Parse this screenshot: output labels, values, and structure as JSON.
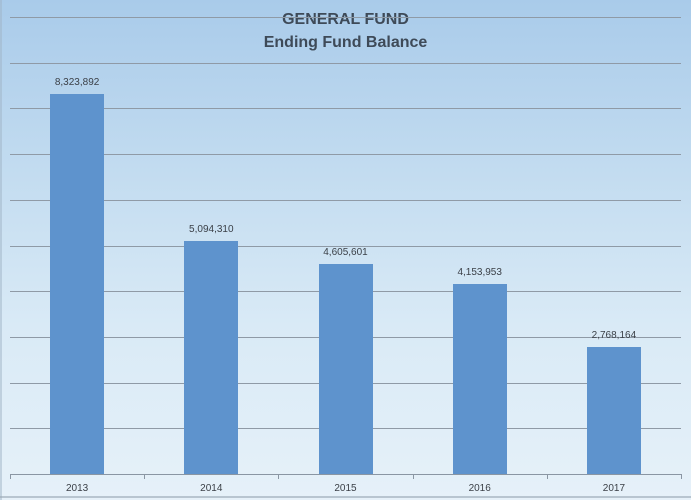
{
  "chart_data": {
    "type": "bar",
    "title": "GENERAL FUND",
    "subtitle": "Ending Fund Balance",
    "categories": [
      "2013",
      "2014",
      "2015",
      "2016",
      "2017"
    ],
    "values": [
      8323892,
      5094310,
      4605601,
      4153953,
      2768164
    ],
    "value_labels": [
      "8,323,892",
      "5,094,310",
      "4,605,601",
      "4,153,953",
      "2,768,164"
    ],
    "xlabel": "",
    "ylabel": "",
    "ylim": [
      0,
      10000000
    ],
    "y_gridlines": [
      1000000,
      2000000,
      3000000,
      4000000,
      5000000,
      6000000,
      7000000,
      8000000,
      9000000
    ],
    "y_tick_labels_shown": false,
    "grid": true,
    "legend": null,
    "bar_color": "#5e93cd"
  }
}
